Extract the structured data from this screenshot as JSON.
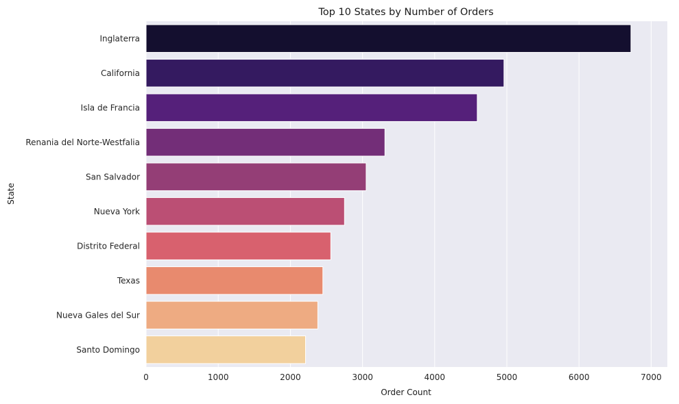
{
  "chart_data": {
    "type": "bar",
    "orientation": "horizontal",
    "title": "Top 10 States by Number of Orders",
    "xlabel": "Order Count",
    "ylabel": "State",
    "xlim": [
      0,
      7000
    ],
    "xticks": [
      0,
      1000,
      2000,
      3000,
      4000,
      5000,
      6000,
      7000
    ],
    "grid": true,
    "categories": [
      "Inglaterra",
      "California",
      "Isla de Francia",
      "Renania del Norte-Westfalia",
      "San Salvador",
      "Nueva York",
      "Distrito Federal",
      "Texas",
      "Nueva Gales del Sur",
      "Santo Domingo"
    ],
    "values": [
      6720,
      4960,
      4590,
      3310,
      3050,
      2750,
      2560,
      2450,
      2380,
      2210
    ],
    "colors": [
      "#140f2f",
      "#341a60",
      "#55207a",
      "#732e78",
      "#943e76",
      "#bb4f74",
      "#d8616e",
      "#e88a6e",
      "#eeab82",
      "#f2d09d"
    ],
    "background_color": "#eaeaf2",
    "grid_color": "#ffffff"
  }
}
